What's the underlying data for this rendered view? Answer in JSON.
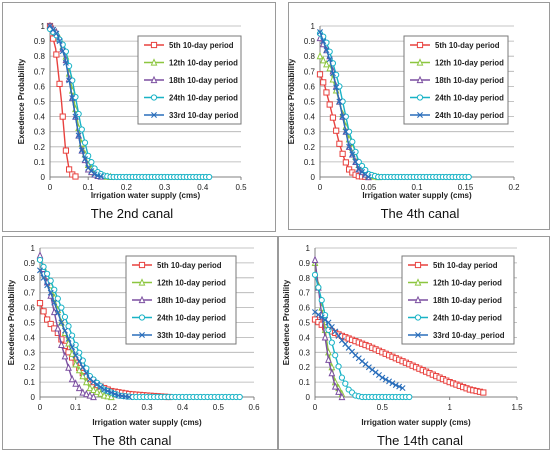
{
  "figure": {
    "panel_captions": [
      "The 2nd canal",
      "The 4th canal",
      "The 8th canal",
      "The 14th canal"
    ]
  },
  "styles": {
    "series_colors": [
      "#e8423f",
      "#8cc63f",
      "#7b4fa0",
      "#19b3c6",
      "#2a6ebb"
    ],
    "markers": [
      "square",
      "triangle",
      "triangle",
      "circle",
      "x"
    ],
    "grid": "#b0b0b0",
    "axis": "#808080",
    "legend_border": "#7a7a7a"
  },
  "chart_data": [
    {
      "type": "line",
      "caption": "The 2nd canal",
      "xlabel": "Irrigation water supply (cms)",
      "ylabel": "Exeedence Probability",
      "xlim": [
        0,
        0.5
      ],
      "xticks": [
        0,
        0.1,
        0.2,
        0.3,
        0.4,
        0.5
      ],
      "ylim": [
        0,
        1
      ],
      "yticks": [
        0,
        0.1,
        0.2,
        0.3,
        0.4,
        0.5,
        0.6,
        0.7,
        0.8,
        0.9,
        1
      ],
      "grid": true,
      "legend": [
        "5th 10-day period",
        "12th 10-day period",
        "18th 10-day period",
        "24th 10-day period",
        "33rd 10-day period"
      ],
      "legend_position": "top-right",
      "series": [
        {
          "name": "5th 10-day period",
          "x_max": 0.07,
          "points": [
            [
              0,
              1
            ],
            [
              0.015,
              0.85
            ],
            [
              0.03,
              0.5
            ],
            [
              0.04,
              0.2
            ],
            [
              0.05,
              0.05
            ],
            [
              0.06,
              0.01
            ],
            [
              0.07,
              0
            ]
          ]
        },
        {
          "name": "12th 10-day period",
          "x_max": 0.16,
          "points": [
            [
              0,
              1
            ],
            [
              0.02,
              0.95
            ],
            [
              0.04,
              0.82
            ],
            [
              0.06,
              0.55
            ],
            [
              0.08,
              0.25
            ],
            [
              0.1,
              0.08
            ],
            [
              0.12,
              0.02
            ],
            [
              0.14,
              0.005
            ],
            [
              0.16,
              0
            ]
          ]
        },
        {
          "name": "18th 10-day period",
          "x_max": 0.14,
          "points": [
            [
              0,
              1
            ],
            [
              0.02,
              0.95
            ],
            [
              0.04,
              0.8
            ],
            [
              0.06,
              0.5
            ],
            [
              0.08,
              0.2
            ],
            [
              0.1,
              0.05
            ],
            [
              0.12,
              0.01
            ],
            [
              0.14,
              0
            ]
          ]
        },
        {
          "name": "24th 10-day period",
          "x_max": 0.42,
          "points": [
            [
              0,
              0.98
            ],
            [
              0.02,
              0.93
            ],
            [
              0.04,
              0.85
            ],
            [
              0.06,
              0.62
            ],
            [
              0.08,
              0.35
            ],
            [
              0.1,
              0.14
            ],
            [
              0.12,
              0.04
            ],
            [
              0.14,
              0.01
            ],
            [
              0.16,
              0
            ],
            [
              0.42,
              0
            ]
          ]
        },
        {
          "name": "33rd 10-day period",
          "x_max": 0.14,
          "points": [
            [
              0,
              1
            ],
            [
              0.02,
              0.94
            ],
            [
              0.04,
              0.78
            ],
            [
              0.06,
              0.5
            ],
            [
              0.08,
              0.2
            ],
            [
              0.1,
              0.06
            ],
            [
              0.12,
              0.01
            ],
            [
              0.14,
              0
            ]
          ]
        }
      ]
    },
    {
      "type": "line",
      "caption": "The 4th canal",
      "xlabel": "Irrigation water supply (cms)",
      "ylabel": "Exeedence Probability",
      "xlim": [
        0,
        0.2
      ],
      "xticks": [
        0,
        0.05,
        0.1,
        0.15,
        0.2
      ],
      "ylim": [
        0,
        1
      ],
      "yticks": [
        0,
        0.1,
        0.2,
        0.3,
        0.4,
        0.5,
        0.6,
        0.7,
        0.8,
        0.9,
        1
      ],
      "grid": true,
      "legend": [
        "5th 10-day period",
        "12th 10-day  period",
        "18th 10-day period",
        "24th 10-day period",
        "24th 10-day period"
      ],
      "legend_position": "top-right",
      "series": [
        {
          "name": "5th 10-day period",
          "x_max": 0.05,
          "points": [
            [
              0,
              0.68
            ],
            [
              0.005,
              0.6
            ],
            [
              0.01,
              0.48
            ],
            [
              0.015,
              0.35
            ],
            [
              0.02,
              0.22
            ],
            [
              0.025,
              0.12
            ],
            [
              0.03,
              0.05
            ],
            [
              0.035,
              0.02
            ],
            [
              0.04,
              0.005
            ],
            [
              0.05,
              0
            ]
          ]
        },
        {
          "name": "12th 10-day  period",
          "x_max": 0.06,
          "points": [
            [
              0,
              0.8
            ],
            [
              0.01,
              0.72
            ],
            [
              0.02,
              0.5
            ],
            [
              0.03,
              0.25
            ],
            [
              0.04,
              0.08
            ],
            [
              0.05,
              0.01
            ],
            [
              0.06,
              0
            ]
          ]
        },
        {
          "name": "18th 10-day period",
          "x_max": 0.05,
          "points": [
            [
              0,
              0.92
            ],
            [
              0.01,
              0.8
            ],
            [
              0.02,
              0.5
            ],
            [
              0.03,
              0.2
            ],
            [
              0.04,
              0.05
            ],
            [
              0.05,
              0
            ]
          ]
        },
        {
          "name": "24th 10-day period",
          "x_max": 0.155,
          "points": [
            [
              0,
              0.95
            ],
            [
              0.005,
              0.92
            ],
            [
              0.01,
              0.83
            ],
            [
              0.02,
              0.6
            ],
            [
              0.03,
              0.3
            ],
            [
              0.04,
              0.1
            ],
            [
              0.05,
              0.02
            ],
            [
              0.06,
              0
            ],
            [
              0.155,
              0
            ]
          ]
        },
        {
          "name": "24th 10-day period",
          "x_max": 0.05,
          "points": [
            [
              0,
              0.96
            ],
            [
              0.01,
              0.78
            ],
            [
              0.02,
              0.5
            ],
            [
              0.03,
              0.2
            ],
            [
              0.04,
              0.05
            ],
            [
              0.05,
              0
            ]
          ]
        }
      ]
    },
    {
      "type": "line",
      "caption": "The 8th canal",
      "xlabel": "Irrigation water supply (cms)",
      "ylabel": "Exeedence Probability",
      "xlim": [
        0,
        0.6
      ],
      "xticks": [
        0,
        0.1,
        0.2,
        0.3,
        0.4,
        0.5,
        0.6
      ],
      "ylim": [
        0,
        1
      ],
      "yticks": [
        0,
        0.1,
        0.2,
        0.3,
        0.4,
        0.5,
        0.6,
        0.7,
        0.8,
        0.9,
        1
      ],
      "grid": true,
      "legend": [
        "5th 10-day period",
        "12th 10-day period",
        "18th 10-day period",
        "24th 10-day period",
        "33th 10-day period"
      ],
      "legend_position": "top-right",
      "series": [
        {
          "name": "5th 10-day period",
          "x_max": 0.36,
          "points": [
            [
              0,
              0.63
            ],
            [
              0.02,
              0.52
            ],
            [
              0.05,
              0.43
            ],
            [
              0.08,
              0.3
            ],
            [
              0.12,
              0.16
            ],
            [
              0.16,
              0.08
            ],
            [
              0.2,
              0.04
            ],
            [
              0.25,
              0.02
            ],
            [
              0.3,
              0.01
            ],
            [
              0.36,
              0
            ]
          ]
        },
        {
          "name": "12th 10-day period",
          "x_max": 0.2,
          "points": [
            [
              0,
              0.93
            ],
            [
              0.03,
              0.75
            ],
            [
              0.06,
              0.5
            ],
            [
              0.1,
              0.22
            ],
            [
              0.14,
              0.06
            ],
            [
              0.18,
              0.01
            ],
            [
              0.2,
              0
            ]
          ]
        },
        {
          "name": "18th 10-day period",
          "x_max": 0.15,
          "points": [
            [
              0,
              0.95
            ],
            [
              0.03,
              0.68
            ],
            [
              0.06,
              0.35
            ],
            [
              0.09,
              0.12
            ],
            [
              0.12,
              0.03
            ],
            [
              0.15,
              0
            ]
          ]
        },
        {
          "name": "24th 10-day period",
          "x_max": 0.56,
          "points": [
            [
              0,
              0.92
            ],
            [
              0.03,
              0.78
            ],
            [
              0.06,
              0.6
            ],
            [
              0.1,
              0.35
            ],
            [
              0.14,
              0.14
            ],
            [
              0.18,
              0.05
            ],
            [
              0.22,
              0.01
            ],
            [
              0.26,
              0
            ],
            [
              0.56,
              0
            ]
          ]
        },
        {
          "name": "33th 10-day period",
          "x_max": 0.25,
          "points": [
            [
              0,
              0.85
            ],
            [
              0.03,
              0.7
            ],
            [
              0.06,
              0.5
            ],
            [
              0.1,
              0.28
            ],
            [
              0.14,
              0.12
            ],
            [
              0.18,
              0.05
            ],
            [
              0.22,
              0.01
            ],
            [
              0.25,
              0
            ]
          ]
        }
      ]
    },
    {
      "type": "line",
      "caption": "The 14th canal",
      "xlabel": "Irrigation water supply (cms)",
      "ylabel": "Exeedence Probability",
      "xlim": [
        0,
        1.5
      ],
      "xticks": [
        0,
        0.5,
        1,
        1.5
      ],
      "ylim": [
        0,
        1
      ],
      "yticks": [
        0,
        0.1,
        0.2,
        0.3,
        0.4,
        0.5,
        0.6,
        0.7,
        0.8,
        0.9,
        1
      ],
      "grid": true,
      "legend": [
        "5th 10-day period",
        "12th 10-day period",
        "18th 10-day period",
        "24th 10-day period",
        "33rd 10-day_period"
      ],
      "legend_position": "top-right",
      "series": [
        {
          "name": "5th 10-day period",
          "x_max": 1.25,
          "points": [
            [
              0,
              0.52
            ],
            [
              0.1,
              0.45
            ],
            [
              0.2,
              0.41
            ],
            [
              0.4,
              0.34
            ],
            [
              0.6,
              0.26
            ],
            [
              0.8,
              0.18
            ],
            [
              1.0,
              0.1
            ],
            [
              1.15,
              0.05
            ],
            [
              1.25,
              0.03
            ]
          ]
        },
        {
          "name": "12th 10-day period",
          "x_max": 0.22,
          "points": [
            [
              0,
              0.9
            ],
            [
              0.05,
              0.6
            ],
            [
              0.1,
              0.3
            ],
            [
              0.15,
              0.1
            ],
            [
              0.2,
              0.02
            ],
            [
              0.22,
              0
            ]
          ]
        },
        {
          "name": "18th 10-day period",
          "x_max": 0.2,
          "points": [
            [
              0,
              0.92
            ],
            [
              0.05,
              0.55
            ],
            [
              0.1,
              0.25
            ],
            [
              0.15,
              0.07
            ],
            [
              0.2,
              0
            ]
          ]
        },
        {
          "name": "24th 10-day period",
          "x_max": 0.7,
          "points": [
            [
              0,
              0.82
            ],
            [
              0.05,
              0.65
            ],
            [
              0.1,
              0.45
            ],
            [
              0.15,
              0.28
            ],
            [
              0.2,
              0.13
            ],
            [
              0.25,
              0.05
            ],
            [
              0.3,
              0.01
            ],
            [
              0.35,
              0
            ],
            [
              0.7,
              0
            ]
          ]
        },
        {
          "name": "33rd 10-day_period",
          "x_max": 0.65,
          "points": [
            [
              0,
              0.57
            ],
            [
              0.1,
              0.5
            ],
            [
              0.2,
              0.38
            ],
            [
              0.3,
              0.28
            ],
            [
              0.4,
              0.2
            ],
            [
              0.5,
              0.13
            ],
            [
              0.6,
              0.08
            ],
            [
              0.65,
              0.06
            ]
          ]
        }
      ]
    }
  ]
}
